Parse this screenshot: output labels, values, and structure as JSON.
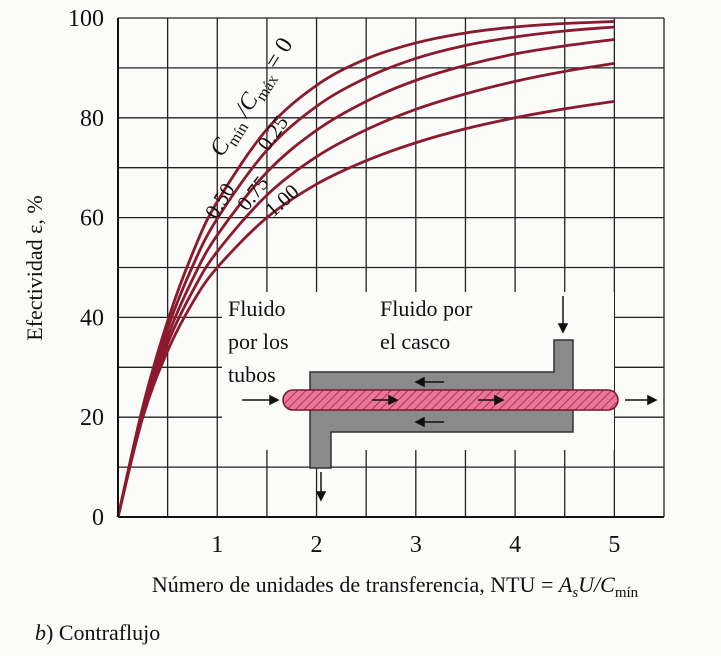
{
  "chart_data": {
    "type": "line",
    "ylabel": "Efectividad ε, %",
    "xlabel": [
      "Número de unidades de transferencia, NTU = ",
      "A",
      "s",
      "U/C",
      "mín"
    ],
    "legend_title": [
      "C",
      "mín",
      " /C",
      "máx",
      " = "
    ],
    "caption": [
      "b",
      ") Contraflujo"
    ],
    "x": [
      0,
      0.25,
      0.5,
      0.75,
      1,
      1.5,
      2,
      2.5,
      3,
      3.5,
      4,
      4.5,
      5
    ],
    "series": [
      {
        "name": "0",
        "color": "#8b1a2e",
        "values": [
          0,
          22.1,
          39.3,
          52.8,
          63.2,
          77.7,
          86.5,
          91.8,
          95.0,
          97.0,
          98.2,
          98.9,
          99.3
        ]
      },
      {
        "name": "0.25",
        "color": "#8b1a2e",
        "values": [
          0,
          21.6,
          37.8,
          50.2,
          59.8,
          73.5,
          82.3,
          88.0,
          91.9,
          94.5,
          96.2,
          97.4,
          98.2
        ]
      },
      {
        "name": "0.50",
        "color": "#8b1a2e",
        "values": [
          0,
          21.0,
          36.2,
          47.6,
          56.5,
          69.1,
          77.5,
          83.3,
          87.5,
          90.5,
          92.8,
          94.4,
          95.7
        ]
      },
      {
        "name": "0.75",
        "color": "#8b1a2e",
        "values": [
          0,
          20.5,
          34.8,
          45.2,
          53.2,
          64.5,
          72.2,
          77.6,
          81.7,
          84.8,
          87.3,
          89.3,
          90.9
        ]
      },
      {
        "name": "1.00",
        "color": "#8b1a2e",
        "values": [
          0,
          20.0,
          33.3,
          42.9,
          50.0,
          60.0,
          66.7,
          71.4,
          75.0,
          77.8,
          80.0,
          81.8,
          83.3
        ]
      }
    ],
    "xlim": [
      0,
      5.5
    ],
    "ylim": [
      0,
      100
    ],
    "xticks": [
      1,
      2,
      3,
      4,
      5
    ],
    "yticks": [
      0,
      20,
      40,
      60,
      80,
      100
    ],
    "x_minor_grid": [
      0.5,
      1.5,
      2.5,
      3.5,
      4.5,
      5.5
    ],
    "y_minor_grid": [
      10,
      30,
      50,
      70,
      90
    ],
    "grid": true,
    "inset": {
      "tube_fluid": [
        "Fluido",
        "por los",
        "tubos"
      ],
      "shell_fluid": [
        "Fluido por",
        "el casco"
      ]
    }
  }
}
